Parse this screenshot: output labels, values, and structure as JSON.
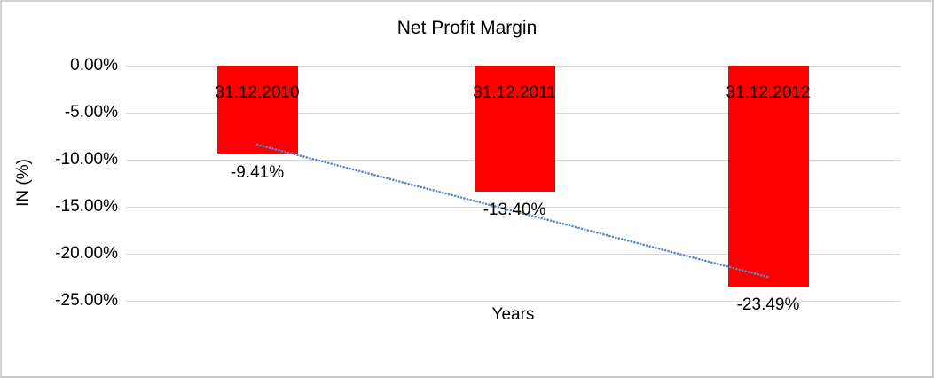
{
  "chart_data": {
    "type": "bar",
    "title": "Net Profit Margin",
    "xlabel": "Years",
    "ylabel": "IN (%)",
    "categories": [
      "31.12.2010",
      "31.12.2011",
      "31.12.2012"
    ],
    "values": [
      -9.41,
      -13.4,
      -23.49
    ],
    "data_labels": [
      "-9.41%",
      "-13.40%",
      "-23.49%"
    ],
    "ylim": [
      -25,
      0
    ],
    "yticks": [
      {
        "value": 0,
        "label": "0.00%"
      },
      {
        "value": -5,
        "label": "-5.00%"
      },
      {
        "value": -10,
        "label": "-10.00%"
      },
      {
        "value": -15,
        "label": "-15.00%"
      },
      {
        "value": -20,
        "label": "-20.00%"
      },
      {
        "value": -25,
        "label": "-25.00%"
      }
    ],
    "grid": true,
    "legend": "none",
    "trendline": {
      "type": "linear",
      "style": "dotted"
    },
    "colors": {
      "bar": "#ff0000",
      "gridline": "#d9d9d9",
      "trendline": "#5b8ac6",
      "text": "#000000",
      "background": "#ffffff",
      "frame_border": "#d3d3d3"
    }
  }
}
